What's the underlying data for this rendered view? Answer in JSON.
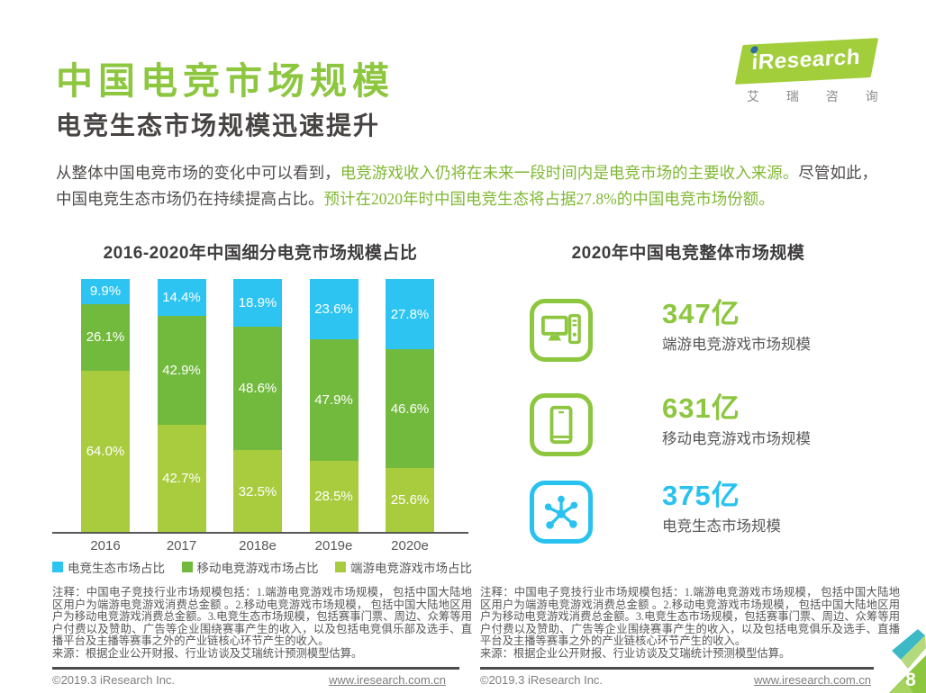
{
  "header": {
    "title": "中国电竞市场规模",
    "subtitle": "电竞生态市场规模迅速提升"
  },
  "logo": {
    "brand": "iResearch",
    "brand_cn": "艾 瑞 咨 询"
  },
  "intro": {
    "segments": [
      {
        "text": "从整体中国电竞市场的变化中可以看到，",
        "highlight": false
      },
      {
        "text": "电竞游戏收入仍将在未来一段时间内是电竞市场的主要收入来源。",
        "highlight": true
      },
      {
        "text": "尽管如此，中国电竞生态市场仍在持续提高占比。",
        "highlight": false
      },
      {
        "text": "预计在2020年时中国电竞生态将占据27.8%的中国电竞市场份额。",
        "highlight": true
      }
    ]
  },
  "chart_data": {
    "type": "bar",
    "subtype": "stacked-percent",
    "title": "2016-2020年中国细分电竞市场规模占比",
    "categories": [
      "2016",
      "2017",
      "2018e",
      "2019e",
      "2020e"
    ],
    "series": [
      {
        "name": "电竞生态市场占比",
        "color": "#2ec4f1",
        "values": [
          9.9,
          14.4,
          18.9,
          23.6,
          27.8
        ]
      },
      {
        "name": "移动电竞游戏市场占比",
        "color": "#72ba3d",
        "values": [
          26.1,
          42.9,
          48.6,
          47.9,
          46.6
        ]
      },
      {
        "name": "端游电竞游戏市场占比",
        "color": "#a9cc3e",
        "values": [
          64.0,
          42.7,
          32.5,
          28.5,
          25.6
        ]
      }
    ],
    "unit": "%",
    "ylim": [
      0,
      100
    ],
    "value_labels": "inside-white",
    "legend_position": "bottom",
    "grid": false
  },
  "stats": {
    "title": "2020年中国电竞整体市场规模",
    "items": [
      {
        "icon": "desktop-icon",
        "value": "347",
        "unit": "亿",
        "label": "端游电竞游戏市场规模",
        "color": "#8dc63f"
      },
      {
        "icon": "mobile-icon",
        "value": "631",
        "unit": "亿",
        "label": "移动电竞游戏市场规模",
        "color": "#8dc63f"
      },
      {
        "icon": "network-icon",
        "value": "375",
        "unit": "亿",
        "label": "电竞生态市场规模",
        "color": "#29c2f0"
      }
    ]
  },
  "notes_left": {
    "note": "注释：中国电子竞技行业市场规模包括：1.端游电竞游戏市场规模， 包括中国大陆地区用户为端游电竞游戏消费总金额 。2.移动电竞游戏市场规模， 包括中国大陆地区用户为移动电竞游戏消费总金额。3.电竞生态市场规模，包括赛事门票、周边、众筹等用 户付费以及赞助、广告等企业围绕赛事产生的收入，以及包括电竞俱乐部及选手、直播平台及主播等赛事之外的产业链核心环节产生的收入。",
    "source": "来源：根据企业公开财报、行业访谈及艾瑞统计预测模型估算。"
  },
  "notes_right": {
    "note": "注释：中国电子竞技行业市场规模包括：1.端游电竞游戏市场规模， 包括中国大陆地区用户为端游电竞游戏消费总金额 。2.移动电竞游戏市场规模， 包括中国大陆地区用户为移动电竞游戏消费总金额。3.电竞生态市场规模，包括赛事门票、周边、众筹等用 户付费以及赞助、广告等企业围绕赛事产生的收入，以及包括电竞俱乐及选手、直播平台及主播等赛事之外的产业链核心环节产生的收入。",
    "source": "来源：根据企业公开财报、行业访谈及艾瑞统计预测模型估算。"
  },
  "footer": {
    "copyright": "©2019.3 iResearch Inc.",
    "url": "www.iresearch.com.cn",
    "page": "8"
  },
  "colors": {
    "brand_green": "#8dc63f",
    "highlight_green": "#7fb832",
    "cyan": "#2ec4f1",
    "mid_green": "#72ba3d",
    "light_green": "#a9cc3e",
    "text_dark": "#474443",
    "text_gray": "#595757"
  }
}
